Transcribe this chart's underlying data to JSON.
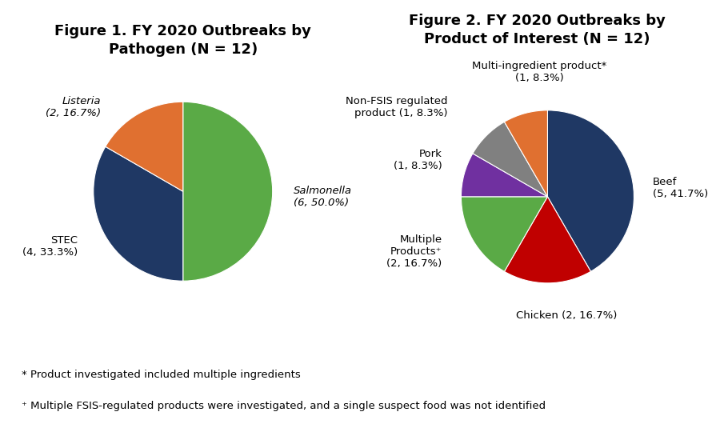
{
  "fig1_title": "Figure 1. FY 2020 Outbreaks by\nPathogen (N = 12)",
  "fig1_values": [
    6,
    4,
    2
  ],
  "fig1_colors": [
    "#5aaa46",
    "#1f3864",
    "#e07030"
  ],
  "fig1_startangle": 90,
  "fig2_title": "Figure 2. FY 2020 Outbreaks by\nProduct of Interest (N = 12)",
  "fig2_values": [
    5,
    2,
    2,
    1,
    1,
    1
  ],
  "fig2_colors": [
    "#1f3864",
    "#c00000",
    "#5aaa46",
    "#7030a0",
    "#808080",
    "#e07030"
  ],
  "fig2_startangle": 90,
  "footnote1": "* Product investigated included multiple ingredients",
  "footnote2": "⁺ Multiple FSIS-regulated products were investigated, and a single suspect food was not identified",
  "bg_color": "#ffffff",
  "title_fontsize": 13,
  "label_fontsize": 9.5,
  "footnote_fontsize": 9.5
}
